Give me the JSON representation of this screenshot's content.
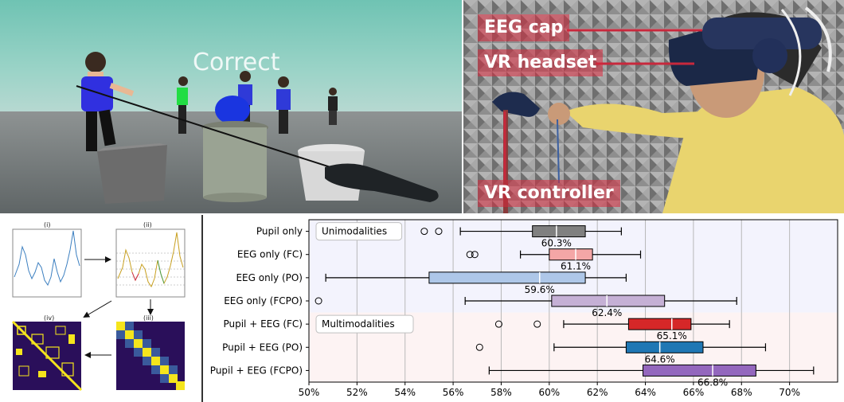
{
  "scene": {
    "feedback_text": "Correct"
  },
  "photo": {
    "labels": [
      "EEG cap",
      "VR headset",
      "VR controller"
    ]
  },
  "pipeline": {
    "panels": [
      "(i)",
      "(ii)",
      "(iii)",
      "(iv)"
    ]
  },
  "chart_data": {
    "type": "box",
    "orientation": "horizontal",
    "xlim": [
      50,
      72
    ],
    "xticks": [
      "50%",
      "52%",
      "54%",
      "56%",
      "58%",
      "60%",
      "62%",
      "64%",
      "66%",
      "68%",
      "70%"
    ],
    "grid": "vertical",
    "groups": [
      {
        "label": "Unimodalities",
        "rows": [
          0,
          1,
          2,
          3
        ],
        "background": "#f3f3fd"
      },
      {
        "label": "Multimodalities",
        "rows": [
          4,
          5,
          6
        ],
        "background": "#fdf3f3"
      }
    ],
    "series": [
      {
        "name": "Pupil only",
        "min": 56.3,
        "q1": 59.3,
        "median": 60.3,
        "q3": 61.5,
        "max": 63.0,
        "outliers": [
          54.8,
          55.4
        ],
        "median_label": "60.3%",
        "color": "#808080"
      },
      {
        "name": "EEG only (FC)",
        "min": 58.8,
        "q1": 60.0,
        "median": 61.1,
        "q3": 61.8,
        "max": 63.8,
        "outliers": [
          56.7,
          56.9
        ],
        "median_label": "61.1%",
        "color": "#f4a6a6"
      },
      {
        "name": "EEG only (PO)",
        "min": 50.7,
        "q1": 55.0,
        "median": 59.6,
        "q3": 61.5,
        "max": 63.2,
        "outliers": [],
        "median_label": "59.6%",
        "color": "#aec7e8"
      },
      {
        "name": "EEG only (FCPO)",
        "min": 56.5,
        "q1": 60.1,
        "median": 62.4,
        "q3": 64.8,
        "max": 67.8,
        "outliers": [
          50.4
        ],
        "median_label": "62.4%",
        "color": "#c5b0d5"
      },
      {
        "name": "Pupil + EEG (FC)",
        "min": 60.6,
        "q1": 63.3,
        "median": 65.1,
        "q3": 65.9,
        "max": 67.5,
        "outliers": [
          57.9,
          59.5
        ],
        "median_label": "65.1%",
        "color": "#d62728"
      },
      {
        "name": "Pupil + EEG (PO)",
        "min": 60.2,
        "q1": 63.2,
        "median": 64.6,
        "q3": 66.4,
        "max": 69.0,
        "outliers": [
          57.1
        ],
        "median_label": "64.6%",
        "color": "#1f77b4"
      },
      {
        "name": "Pupil + EEG (FCPO)",
        "min": 57.5,
        "q1": 63.9,
        "median": 66.8,
        "q3": 68.6,
        "max": 71.0,
        "outliers": [],
        "median_label": "66.8%",
        "color": "#9467bd"
      }
    ]
  }
}
